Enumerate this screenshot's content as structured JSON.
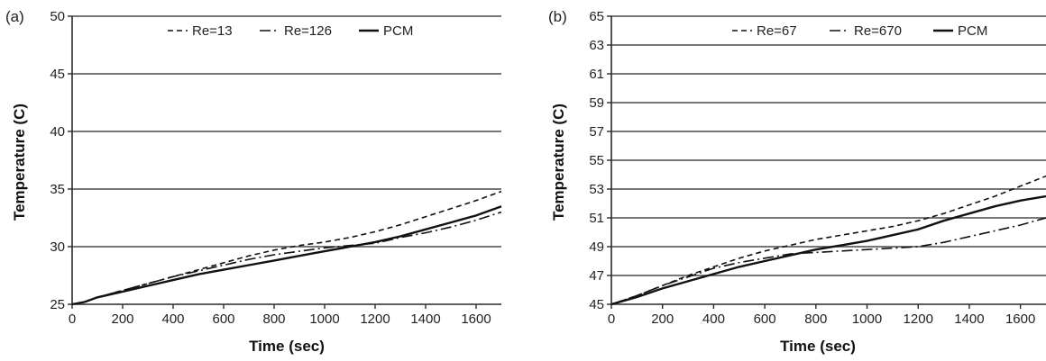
{
  "chart_data": [
    {
      "type": "line",
      "panel_label": "(a)",
      "xlabel": "Time (sec)",
      "ylabel": "Temperature (C)",
      "xlim": [
        0,
        1700
      ],
      "ylim": [
        25,
        50
      ],
      "xticks": [
        0,
        200,
        400,
        600,
        800,
        1000,
        1200,
        1400,
        1600
      ],
      "yticks": [
        25,
        30,
        35,
        40,
        45,
        50
      ],
      "grid": "horizontal",
      "legend_position": "top-center",
      "series": [
        {
          "name": "Re=13",
          "style": "dashed",
          "x": [
            0,
            50,
            100,
            200,
            300,
            400,
            500,
            600,
            700,
            800,
            900,
            1000,
            1100,
            1200,
            1300,
            1400,
            1500,
            1600,
            1700
          ],
          "y": [
            25.0,
            25.2,
            25.6,
            26.2,
            26.8,
            27.4,
            28.0,
            28.6,
            29.2,
            29.7,
            30.1,
            30.4,
            30.8,
            31.3,
            31.9,
            32.6,
            33.3,
            34.0,
            34.8
          ]
        },
        {
          "name": "Re=126",
          "style": "dashdot",
          "x": [
            0,
            50,
            100,
            200,
            300,
            400,
            500,
            600,
            700,
            800,
            900,
            1000,
            1100,
            1200,
            1300,
            1400,
            1500,
            1600,
            1700
          ],
          "y": [
            25.0,
            25.2,
            25.6,
            26.2,
            26.8,
            27.4,
            27.9,
            28.4,
            28.9,
            29.3,
            29.6,
            29.9,
            30.1,
            30.3,
            30.8,
            31.2,
            31.7,
            32.3,
            33.0
          ]
        },
        {
          "name": "PCM",
          "style": "solid",
          "x": [
            0,
            50,
            100,
            200,
            300,
            400,
            500,
            600,
            700,
            800,
            900,
            1000,
            1100,
            1200,
            1300,
            1400,
            1500,
            1600,
            1700
          ],
          "y": [
            25.0,
            25.2,
            25.6,
            26.1,
            26.6,
            27.1,
            27.6,
            28.0,
            28.4,
            28.8,
            29.2,
            29.6,
            30.0,
            30.4,
            30.9,
            31.5,
            32.1,
            32.7,
            33.5
          ]
        }
      ]
    },
    {
      "type": "line",
      "panel_label": "(b)",
      "xlabel": "Time (sec)",
      "ylabel": "Temperature (C)",
      "xlim": [
        0,
        1700
      ],
      "ylim": [
        45,
        65
      ],
      "xticks": [
        0,
        200,
        400,
        600,
        800,
        1000,
        1200,
        1400,
        1600
      ],
      "yticks": [
        45,
        47,
        49,
        51,
        53,
        55,
        57,
        59,
        61,
        63,
        65
      ],
      "grid": "horizontal",
      "legend_position": "top-right",
      "series": [
        {
          "name": "Re=67",
          "style": "dashed",
          "x": [
            0,
            100,
            200,
            300,
            400,
            500,
            600,
            700,
            800,
            900,
            1000,
            1100,
            1200,
            1300,
            1400,
            1500,
            1600,
            1700
          ],
          "y": [
            45.0,
            45.6,
            46.3,
            47.0,
            47.6,
            48.2,
            48.7,
            49.1,
            49.5,
            49.8,
            50.1,
            50.4,
            50.8,
            51.3,
            51.9,
            52.5,
            53.2,
            53.9
          ]
        },
        {
          "name": "Re=670",
          "style": "dashdot",
          "x": [
            0,
            100,
            200,
            300,
            400,
            500,
            600,
            700,
            800,
            900,
            1000,
            1100,
            1200,
            1300,
            1400,
            1500,
            1600,
            1700
          ],
          "y": [
            45.0,
            45.6,
            46.3,
            46.9,
            47.5,
            47.9,
            48.2,
            48.5,
            48.6,
            48.7,
            48.8,
            48.9,
            49.0,
            49.3,
            49.7,
            50.1,
            50.5,
            51.0
          ]
        },
        {
          "name": "PCM",
          "style": "solid",
          "x": [
            0,
            100,
            200,
            300,
            400,
            500,
            600,
            700,
            800,
            900,
            1000,
            1100,
            1200,
            1300,
            1400,
            1500,
            1600,
            1700
          ],
          "y": [
            45.0,
            45.5,
            46.1,
            46.6,
            47.1,
            47.6,
            48.0,
            48.4,
            48.8,
            49.1,
            49.4,
            49.8,
            50.2,
            50.8,
            51.3,
            51.8,
            52.2,
            52.5
          ]
        }
      ]
    }
  ]
}
